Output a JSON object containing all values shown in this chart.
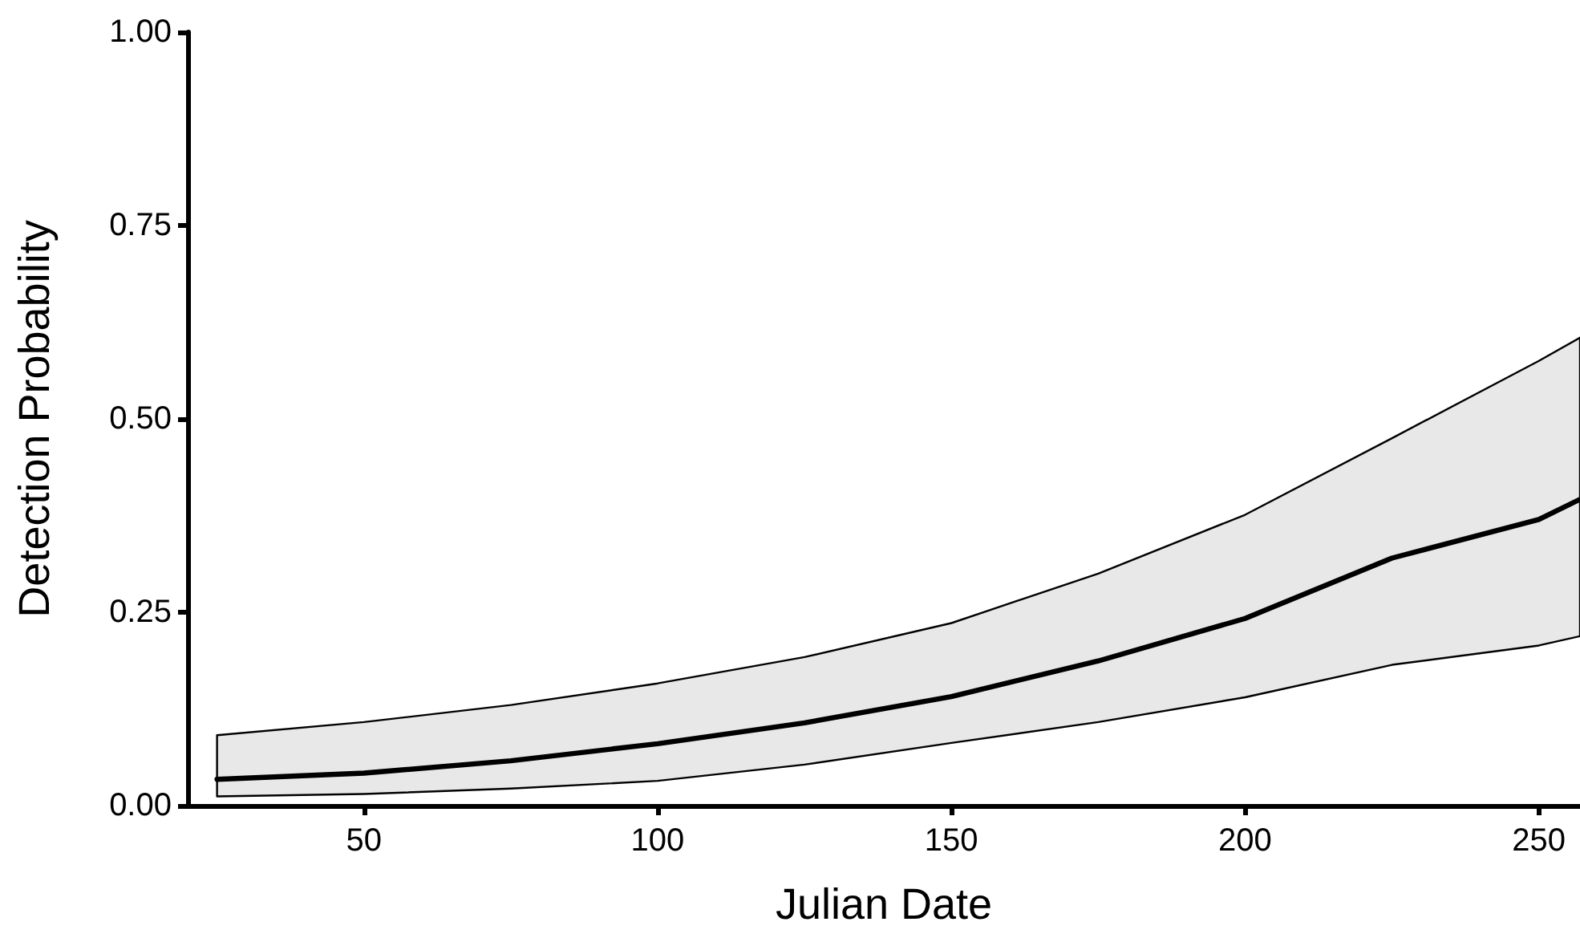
{
  "chart_data": {
    "type": "line",
    "xlabel": "Julian Date",
    "ylabel": "Detection Probability",
    "x": [
      25,
      50,
      75,
      100,
      125,
      150,
      175,
      200,
      225,
      250,
      257
    ],
    "series": [
      {
        "color": "#000000",
        "values": [
          0.034,
          0.042,
          0.058,
          0.08,
          0.107,
          0.141,
          0.187,
          0.242,
          0.32,
          0.37,
          0.396
        ],
        "lower": [
          0.012,
          0.015,
          0.022,
          0.032,
          0.053,
          0.081,
          0.108,
          0.14,
          0.182,
          0.207,
          0.219
        ],
        "upper": [
          0.091,
          0.108,
          0.13,
          0.158,
          0.192,
          0.236,
          0.3,
          0.376,
          0.475,
          0.575,
          0.605
        ]
      }
    ],
    "xlim": [
      20,
      257
    ],
    "xticks": [
      50,
      100,
      150,
      200,
      250
    ],
    "ylim": [
      0,
      1
    ],
    "yticks": [
      {
        "value": 0,
        "label": "0.00"
      },
      {
        "value": 0.25,
        "label": "0.25"
      },
      {
        "value": 0.5,
        "label": "0.50"
      },
      {
        "value": 0.75,
        "label": "0.75"
      },
      {
        "value": 1,
        "label": "1.00"
      }
    ],
    "grid": false,
    "marker": "none",
    "line_style": "solid"
  }
}
